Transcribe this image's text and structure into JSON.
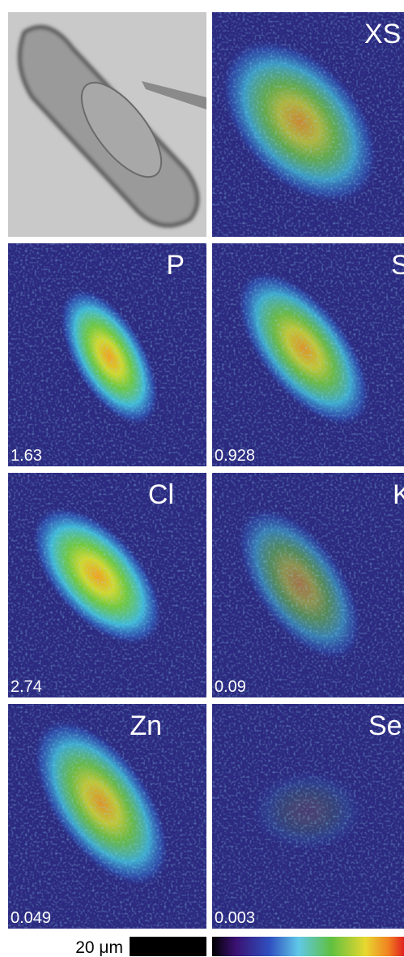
{
  "panels": [
    {
      "label": "XS"
    },
    {
      "label": "P",
      "value": "1.63"
    },
    {
      "label": "S",
      "value": "0.928"
    },
    {
      "label": "Cl",
      "value": "2.74"
    },
    {
      "label": "K",
      "value": "0.09"
    },
    {
      "label": "Zn",
      "value": "0.049"
    },
    {
      "label": "Se",
      "value": "0.003"
    }
  ],
  "scale_bar": {
    "label": "20 μm"
  }
}
